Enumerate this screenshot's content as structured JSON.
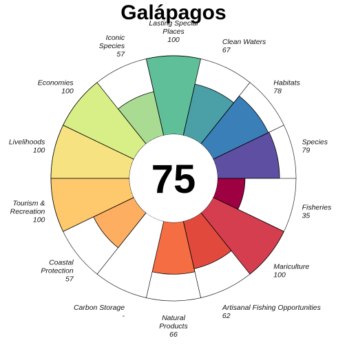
{
  "chart_data": {
    "type": "flower",
    "title": "Galápagos",
    "center_score": "75",
    "ylim": [
      0,
      100
    ],
    "colors": {
      "outline": "#000000",
      "background": "#ffffff",
      "text": "#000000"
    },
    "petals": [
      {
        "name": "Fisheries",
        "score": 35,
        "label": "35",
        "color": "#9e0142"
      },
      {
        "name": "Mariculture",
        "score": 100,
        "label": "100",
        "color": "#d53e4f"
      },
      {
        "name": "Artisanal Fishing Opportunities",
        "score": 62,
        "label": "62",
        "color": "#e2493d"
      },
      {
        "name": "Natural Products",
        "score": 66,
        "label": "66",
        "color": "#f46d43"
      },
      {
        "name": "Carbon Storage",
        "score": null,
        "label": "-",
        "color": "#f98e52"
      },
      {
        "name": "Coastal Protection",
        "score": 57,
        "label": "57",
        "color": "#fdae61"
      },
      {
        "name": "Tourism & Recreation",
        "score": 100,
        "label": "100",
        "color": "#fec86c"
      },
      {
        "name": "Livelihoods",
        "score": 100,
        "label": "100",
        "color": "#f7e281"
      },
      {
        "name": "Economies",
        "score": 100,
        "label": "100",
        "color": "#d8ef87"
      },
      {
        "name": "Iconic Species",
        "score": 57,
        "label": "57",
        "color": "#a9dc92"
      },
      {
        "name": "Lasting Special Places",
        "score": 100,
        "label": "100",
        "color": "#5fbf98"
      },
      {
        "name": "Clean Waters",
        "score": 67,
        "label": "67",
        "color": "#4aa0a6"
      },
      {
        "name": "Habitats",
        "score": 78,
        "label": "78",
        "color": "#3a7fb8"
      },
      {
        "name": "Species",
        "score": 79,
        "label": "79",
        "color": "#5e4fa2"
      }
    ]
  }
}
